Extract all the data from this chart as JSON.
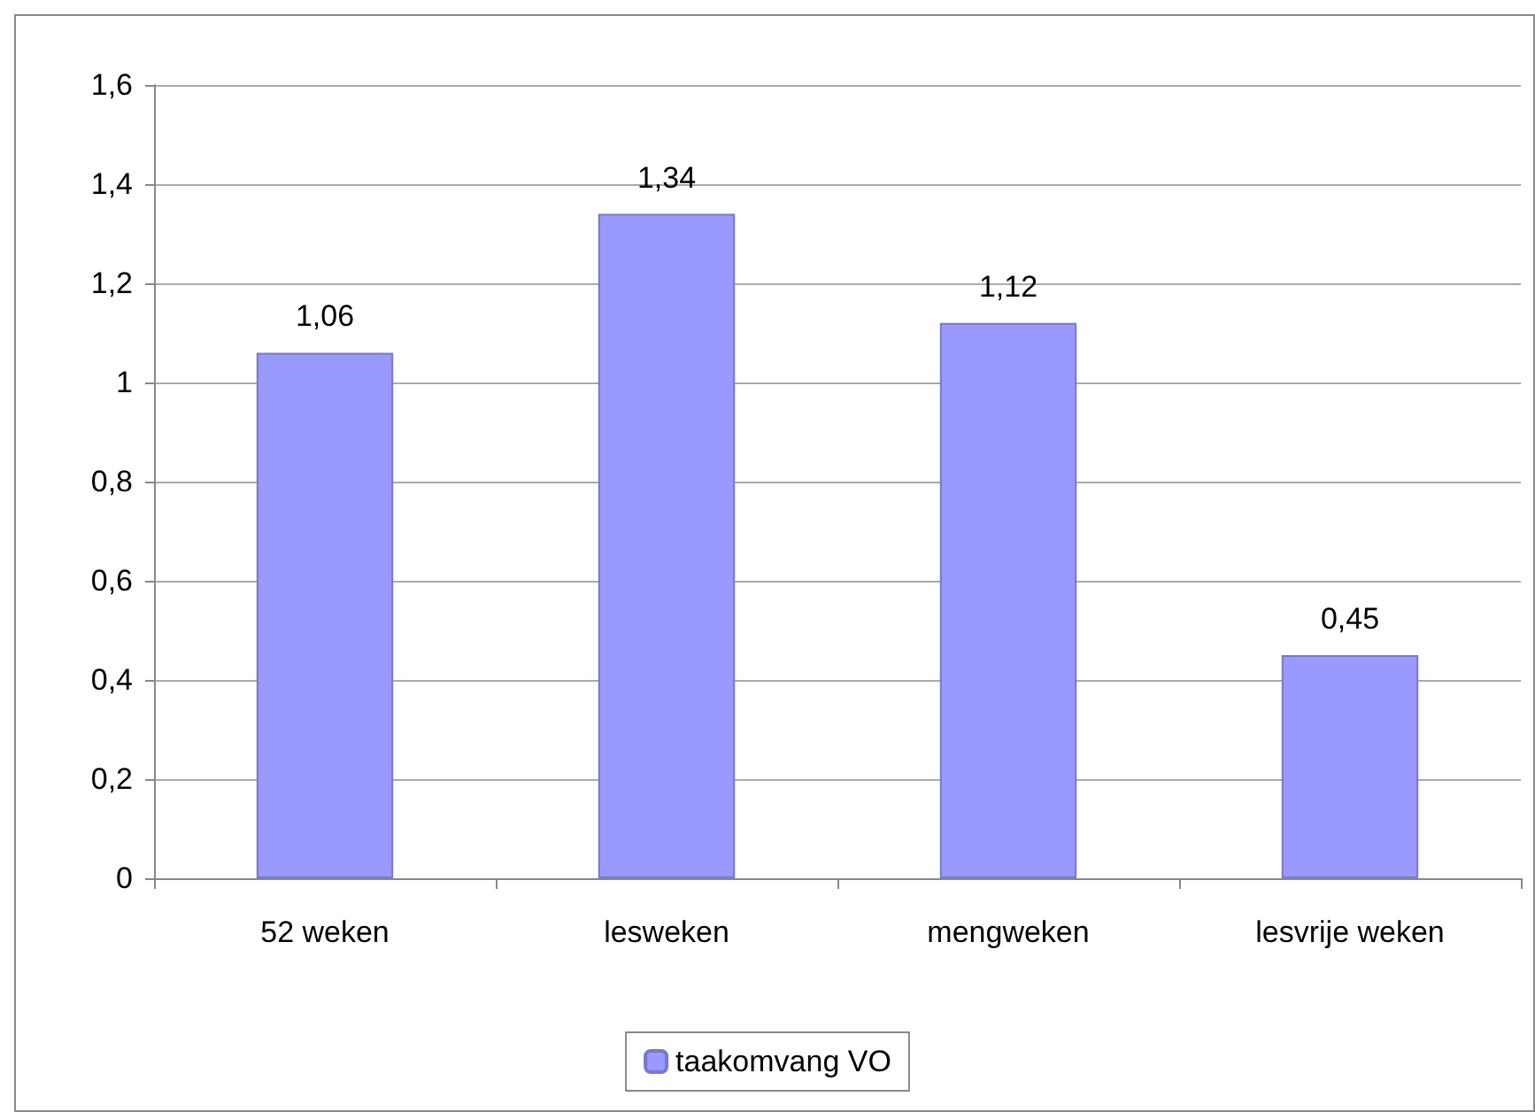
{
  "chart_data": {
    "type": "bar",
    "categories": [
      "52 weken",
      "lesweken",
      "mengweken",
      "lesvrije weken"
    ],
    "series": [
      {
        "name": "taakomvang VO",
        "color": "#9999ff",
        "values": [
          1.06,
          1.34,
          1.12,
          0.45
        ],
        "value_labels": [
          "1,06",
          "1,34",
          "1,12",
          "0,45"
        ]
      }
    ],
    "ylim": [
      0,
      1.6
    ],
    "yticks": [
      0,
      {
        "value": 0.2,
        "label": "0,2"
      },
      {
        "value": 0.4,
        "label": "0,4"
      },
      {
        "value": 0.6,
        "label": "0,6"
      },
      {
        "value": 0.8,
        "label": "0,8"
      },
      1,
      {
        "value": 1.2,
        "label": "1,2"
      },
      {
        "value": 1.4,
        "label": "1,4"
      },
      {
        "value": 1.6,
        "label": "1,6"
      }
    ],
    "grid": "y",
    "legend": "bottom"
  }
}
